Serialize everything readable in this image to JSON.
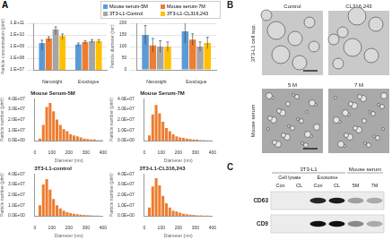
{
  "panel_labels": [
    "A",
    "B",
    "C"
  ],
  "chart_data": [
    {
      "type": "bar",
      "y_label": "Particle concentration (p/ml)",
      "categories": [
        "Nanosight",
        "Exoclogue"
      ],
      "log": "y",
      "ylim": [
        10000000.0,
        100000000000.0
      ],
      "yticks": [
        {
          "value": 10000000.0,
          "label": "1.E+07"
        },
        {
          "value": 100000000.0,
          "label": "1.E+08"
        },
        {
          "value": 1000000000.0,
          "label": "1.E+09"
        },
        {
          "value": 10000000000.0,
          "label": "1.E+10"
        },
        {
          "value": 100000000000.0,
          "label": "1.E+11"
        }
      ],
      "grid": true,
      "legend": "top",
      "series": [
        {
          "name": "Mouse serum-5M",
          "color": "#5b9bd5",
          "values": [
            2000000000.0,
            1500000000.0
          ],
          "errors": [
            1500000000.0,
            500000000.0
          ]
        },
        {
          "name": "Mouse serum-7M",
          "color": "#ed7d31",
          "values": [
            5000000000.0,
            2500000000.0
          ],
          "errors": [
            2000000000.0,
            800000000.0
          ]
        },
        {
          "name": "3T3-L1-Control",
          "color": "#a5a5a5",
          "values": [
            30000000000.0,
            3000000000.0
          ],
          "errors": [
            20000000000.0,
            1000000000.0
          ]
        },
        {
          "name": "3T3-L1-CL316,243",
          "color": "#ffc000",
          "values": [
            8000000000.0,
            3000000000.0
          ],
          "errors": [
            4000000000.0,
            1000000000.0
          ]
        }
      ]
    },
    {
      "type": "bar",
      "y_label": "Particle diameter (nm)",
      "categories": [
        "Nanosight",
        "Exoclogue"
      ],
      "ylim": [
        0,
        200
      ],
      "yticks": [
        0,
        50,
        100,
        150,
        200
      ],
      "grid": true,
      "series": [
        {
          "name": "Mouse serum-5M",
          "color": "#5b9bd5",
          "values": [
            150,
            165
          ],
          "errors": [
            40,
            50
          ]
        },
        {
          "name": "Mouse serum-7M",
          "color": "#ed7d31",
          "values": [
            105,
            130
          ],
          "errors": [
            30,
            25
          ]
        },
        {
          "name": "3T3-L1-Control",
          "color": "#a5a5a5",
          "values": [
            100,
            100
          ],
          "errors": [
            25,
            20
          ]
        },
        {
          "name": "3T3-L1-CL316,243",
          "color": "#ffc000",
          "values": [
            100,
            115
          ],
          "errors": [
            20,
            25
          ]
        }
      ]
    },
    {
      "type": "histogram",
      "title": "Mouse Serum-5M",
      "x_label": "Diameter (nm)",
      "y_label": "Particle number (p/ml)",
      "color": "#ed7d31",
      "bins": [
        0,
        20,
        40,
        60,
        80,
        100,
        120,
        140,
        160,
        180,
        200,
        220,
        240,
        260,
        280,
        300,
        320,
        340,
        360,
        380,
        400
      ],
      "counts": [
        0,
        2000000.0,
        15000000.0,
        32000000.0,
        36000000.0,
        28000000.0,
        20000000.0,
        15000000.0,
        11000000.0,
        9000000.0,
        6000000.0,
        5000000.0,
        4000000.0,
        3000000.0,
        2000000.0,
        1500000.0,
        1000000.0,
        1000000.0,
        500000.0,
        500000.0
      ],
      "xlim": [
        0,
        400
      ],
      "xticks": [
        0,
        100,
        200,
        300,
        400
      ],
      "ylim": [
        0,
        40000000.0
      ],
      "yticks": [
        {
          "value": 0,
          "label": "0.0E+00"
        },
        {
          "value": 10000000.0,
          "label": "1.0E+07"
        },
        {
          "value": 20000000.0,
          "label": "2.0E+07"
        },
        {
          "value": 30000000.0,
          "label": "3.0E+07"
        },
        {
          "value": 40000000.0,
          "label": "4.0E+07"
        }
      ]
    },
    {
      "type": "histogram",
      "title": "Mouse Serum-7M",
      "x_label": "Diameter (nm)",
      "y_label": "Particle number (p/ml)",
      "color": "#ed7d31",
      "bins": [
        0,
        20,
        40,
        60,
        80,
        100,
        120,
        140,
        160,
        180,
        200,
        220,
        240,
        260,
        280,
        300,
        320,
        340,
        360,
        380,
        400
      ],
      "counts": [
        0,
        5000000.0,
        25000000.0,
        34000000.0,
        26000000.0,
        18000000.0,
        12000000.0,
        9000000.0,
        6000000.0,
        4000000.0,
        3000000.0,
        2500000.0,
        2000000.0,
        1500000.0,
        1000000.0,
        1000000.0,
        500000.0,
        500000.0,
        300000.0,
        200000.0
      ],
      "xlim": [
        0,
        400
      ],
      "xticks": [
        0,
        100,
        200,
        300,
        400
      ],
      "ylim": [
        0,
        40000000.0
      ],
      "yticks": [
        {
          "value": 0,
          "label": "0.0E+00"
        },
        {
          "value": 10000000.0,
          "label": "1.0E+07"
        },
        {
          "value": 20000000.0,
          "label": "2.0E+07"
        },
        {
          "value": 30000000.0,
          "label": "3.0E+07"
        },
        {
          "value": 40000000.0,
          "label": "4.0E+07"
        }
      ]
    },
    {
      "type": "histogram",
      "title": "3T3-L1-control",
      "x_label": "Diameter (nm)",
      "y_label": "Particle number (p/ml)",
      "color": "#ed7d31",
      "bins": [
        0,
        20,
        40,
        60,
        80,
        100,
        120,
        140,
        160,
        180,
        200,
        220,
        240,
        260,
        280,
        300,
        320,
        340,
        360,
        380,
        400
      ],
      "counts": [
        0,
        10000000.0,
        30000000.0,
        35000000.0,
        25000000.0,
        16000000.0,
        10000000.0,
        7000000.0,
        5000000.0,
        3500000.0,
        2500000.0,
        2000000.0,
        1500000.0,
        1000000.0,
        800000.0,
        600000.0,
        400000.0,
        300000.0,
        200000.0,
        100000.0
      ],
      "xlim": [
        0,
        400
      ],
      "xticks": [
        0,
        100,
        200,
        300,
        400
      ],
      "ylim": [
        0,
        40000000.0
      ],
      "yticks": [
        {
          "value": 0,
          "label": "0.0E+00"
        },
        {
          "value": 10000000.0,
          "label": "1.0E+07"
        },
        {
          "value": 20000000.0,
          "label": "2.0E+07"
        },
        {
          "value": 30000000.0,
          "label": "3.0E+07"
        },
        {
          "value": 40000000.0,
          "label": "4.0E+07"
        }
      ]
    },
    {
      "type": "histogram",
      "title": "3T3-L1-CL316,243",
      "x_label": "Diameter (nm)",
      "y_label": "Particle number (p/ml)",
      "color": "#ed7d31",
      "bins": [
        0,
        20,
        40,
        60,
        80,
        100,
        120,
        140,
        160,
        180,
        200,
        220,
        240,
        260,
        280,
        300,
        320,
        340,
        360,
        380,
        400
      ],
      "counts": [
        0,
        8000000.0,
        28000000.0,
        36000000.0,
        29000000.0,
        19000000.0,
        12000000.0,
        8000000.0,
        5000000.0,
        4000000.0,
        3000000.0,
        2000000.0,
        1500000.0,
        1000000.0,
        800000.0,
        500000.0,
        400000.0,
        300000.0,
        200000.0,
        100000.0
      ],
      "xlim": [
        0,
        400
      ],
      "xticks": [
        0,
        100,
        200,
        300,
        400
      ],
      "ylim": [
        0,
        40000000.0
      ],
      "yticks": [
        {
          "value": 0,
          "label": "0.0E+00"
        },
        {
          "value": 10000000.0,
          "label": "1.0E+07"
        },
        {
          "value": 20000000.0,
          "label": "2.0E+07"
        },
        {
          "value": 30000000.0,
          "label": "3.0E+07"
        },
        {
          "value": 40000000.0,
          "label": "4.0E+07"
        }
      ]
    }
  ],
  "micrographs": {
    "column_labels": [
      "Control",
      "CL316,243"
    ],
    "rows": [
      {
        "label": "3T3-L1 cell sup."
      },
      {
        "label": "Mouse serum",
        "column_labels": [
          "5 M",
          "7 M"
        ]
      }
    ]
  },
  "blot": {
    "groups": [
      {
        "label": "3T3-L1",
        "lanes": 4
      },
      {
        "label": "Mouse serum",
        "lanes": 2
      }
    ],
    "subgroups": [
      {
        "label": "Cell lysate",
        "lanes": 2
      },
      {
        "label": "Exosome",
        "lanes": 2
      }
    ],
    "lanes": [
      "Con",
      "CL",
      "Con",
      "CL",
      "5M",
      "7M"
    ],
    "bands": [
      "CD63",
      "CD9"
    ]
  }
}
